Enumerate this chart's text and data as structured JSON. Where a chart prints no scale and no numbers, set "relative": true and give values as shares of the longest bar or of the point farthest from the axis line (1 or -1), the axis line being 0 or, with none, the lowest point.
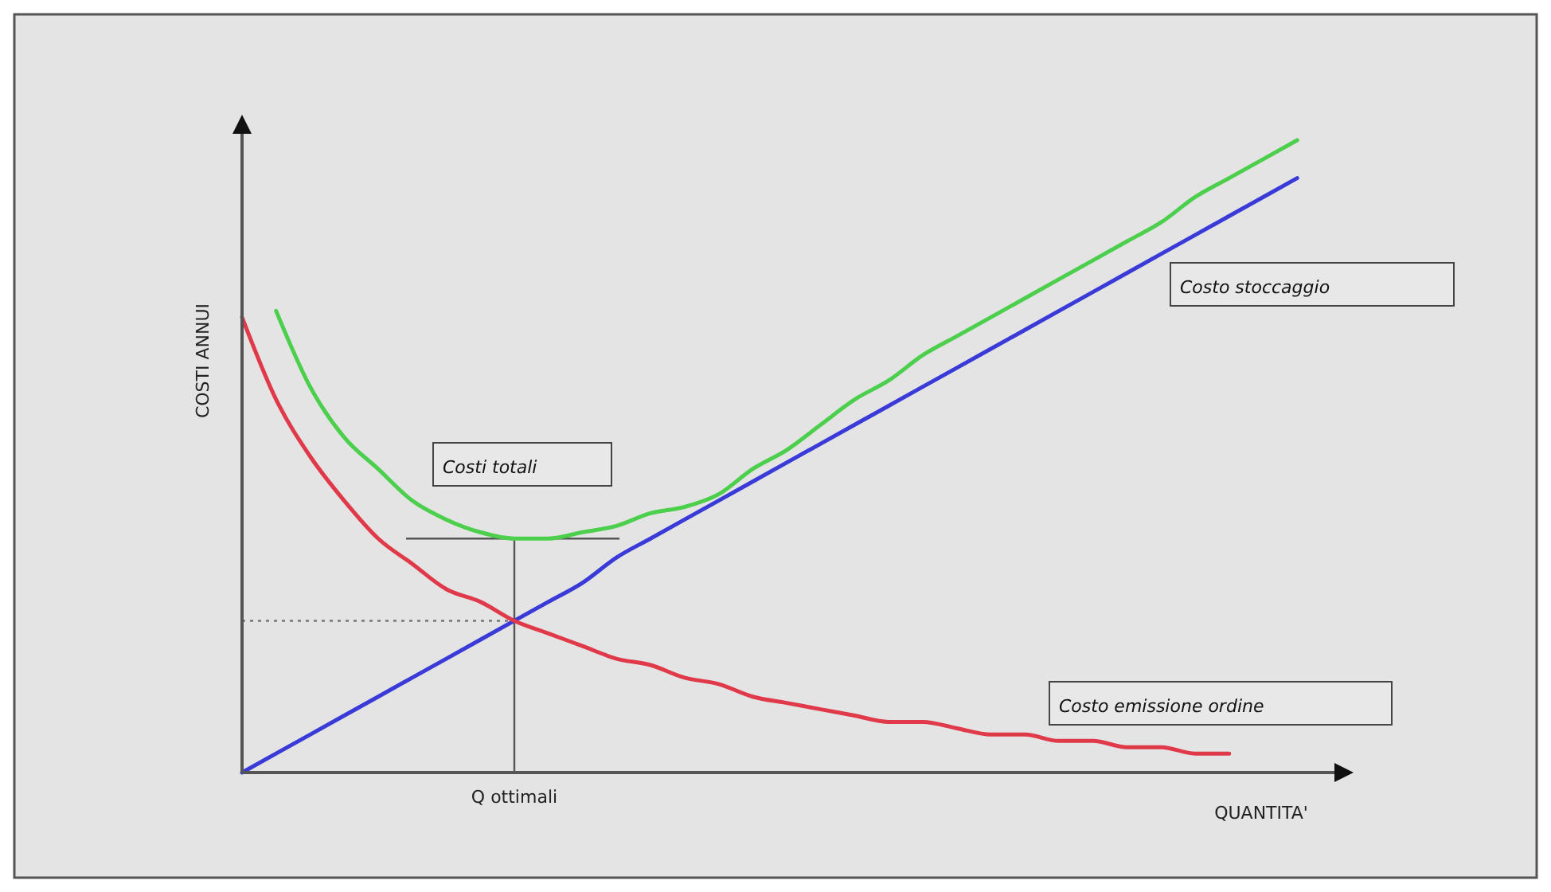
{
  "chart_data": {
    "type": "line",
    "relative": true,
    "xlabel": "QUANTITA'",
    "ylabel": "COSTI ANNUI",
    "annotations": [
      "Q ottimali"
    ],
    "legend": false,
    "grid": false,
    "marker": "none",
    "line_style": "solid",
    "categories": [
      null,
      null,
      null,
      null,
      null,
      null,
      null,
      null,
      null,
      null,
      null,
      null,
      null,
      null,
      null,
      null,
      null,
      null,
      null,
      null,
      null,
      null,
      null,
      null,
      null,
      null,
      null,
      null,
      null,
      null,
      null,
      null,
      null
    ],
    "series": [
      {
        "name": "Costi totali",
        "color": "#4ccf4c",
        "values": [
          null,
          0.73,
          0.61,
          0.53,
          0.48,
          0.43,
          0.4,
          0.38,
          0.37,
          0.37,
          0.38,
          0.39,
          0.41,
          0.42,
          0.44,
          0.48,
          0.51,
          0.55,
          0.59,
          0.62,
          0.66,
          0.69,
          0.72,
          0.75,
          0.78,
          0.81,
          0.84,
          0.87,
          0.91,
          0.94,
          0.97,
          1,
          null
        ]
      },
      {
        "name": "Costo stoccaggio",
        "color": "#3a3ad8",
        "values": [
          0,
          0.03,
          0.06,
          0.09,
          0.12,
          0.15,
          0.18,
          0.21,
          0.24,
          0.27,
          0.3,
          0.34,
          0.37,
          0.4,
          0.43,
          0.46,
          0.49,
          0.52,
          0.55,
          0.58,
          0.61,
          0.64,
          0.67,
          0.7,
          0.73,
          0.76,
          0.79,
          0.82,
          0.85,
          0.88,
          0.91,
          0.94,
          null
        ]
      },
      {
        "name": "Costo emissione ordine",
        "color": "#e03a4a",
        "values": [
          0.72,
          0.59,
          0.5,
          0.43,
          0.37,
          0.33,
          0.29,
          0.27,
          0.24,
          0.22,
          0.2,
          0.18,
          0.17,
          0.15,
          0.14,
          0.12,
          0.11,
          0.1,
          0.09,
          0.08,
          0.08,
          0.07,
          0.06,
          0.06,
          0.05,
          0.05,
          0.04,
          0.04,
          0.03,
          0.03,
          null,
          null,
          null
        ]
      }
    ],
    "ref_lines": [
      {
        "axis": "y",
        "value": 0.24,
        "line_style": "dotted",
        "color": "#777777"
      },
      {
        "axis": "y",
        "value": 0.37,
        "line_style": "solid",
        "color": "#555555"
      }
    ]
  }
}
